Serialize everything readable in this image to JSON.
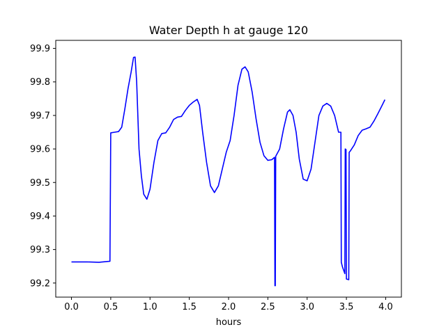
{
  "chart_data": {
    "type": "line",
    "title": "Water Depth h at gauge 120",
    "xlabel": "hours",
    "ylabel": "",
    "xlim": [
      -0.2,
      4.2
    ],
    "ylim": [
      99.158,
      99.924
    ],
    "xticks": [
      0.0,
      0.5,
      1.0,
      1.5,
      2.0,
      2.5,
      3.0,
      3.5,
      4.0
    ],
    "xtick_labels": [
      "0.0",
      "0.5",
      "1.0",
      "1.5",
      "2.0",
      "2.5",
      "3.0",
      "3.5",
      "4.0"
    ],
    "yticks": [
      99.2,
      99.3,
      99.4,
      99.5,
      99.6,
      99.7,
      99.8,
      99.9
    ],
    "ytick_labels": [
      "99.2",
      "99.3",
      "99.4",
      "99.5",
      "99.6",
      "99.7",
      "99.8",
      "99.9"
    ],
    "grid": false,
    "legend": "none",
    "series": [
      {
        "color": "#0000ff",
        "points": [
          [
            0.0,
            99.263
          ],
          [
            0.2,
            99.263
          ],
          [
            0.35,
            99.262
          ],
          [
            0.49,
            99.265
          ],
          [
            0.5,
            99.648
          ],
          [
            0.55,
            99.65
          ],
          [
            0.6,
            99.652
          ],
          [
            0.64,
            99.665
          ],
          [
            0.68,
            99.72
          ],
          [
            0.72,
            99.78
          ],
          [
            0.76,
            99.83
          ],
          [
            0.79,
            99.873
          ],
          [
            0.81,
            99.874
          ],
          [
            0.83,
            99.8
          ],
          [
            0.86,
            99.6
          ],
          [
            0.89,
            99.52
          ],
          [
            0.92,
            99.465
          ],
          [
            0.96,
            99.45
          ],
          [
            1.0,
            99.48
          ],
          [
            1.05,
            99.56
          ],
          [
            1.1,
            99.625
          ],
          [
            1.15,
            99.646
          ],
          [
            1.2,
            99.648
          ],
          [
            1.25,
            99.665
          ],
          [
            1.3,
            99.688
          ],
          [
            1.35,
            99.695
          ],
          [
            1.4,
            99.697
          ],
          [
            1.45,
            99.715
          ],
          [
            1.5,
            99.73
          ],
          [
            1.55,
            99.74
          ],
          [
            1.6,
            99.748
          ],
          [
            1.63,
            99.73
          ],
          [
            1.67,
            99.65
          ],
          [
            1.72,
            99.56
          ],
          [
            1.77,
            99.49
          ],
          [
            1.82,
            99.47
          ],
          [
            1.87,
            99.49
          ],
          [
            1.92,
            99.54
          ],
          [
            1.97,
            99.59
          ],
          [
            2.02,
            99.625
          ],
          [
            2.07,
            99.7
          ],
          [
            2.12,
            99.79
          ],
          [
            2.17,
            99.838
          ],
          [
            2.21,
            99.845
          ],
          [
            2.25,
            99.83
          ],
          [
            2.3,
            99.77
          ],
          [
            2.35,
            99.69
          ],
          [
            2.4,
            99.62
          ],
          [
            2.45,
            99.58
          ],
          [
            2.5,
            99.566
          ],
          [
            2.55,
            99.568
          ],
          [
            2.585,
            99.575
          ],
          [
            2.59,
            99.192
          ],
          [
            2.595,
            99.192
          ],
          [
            2.6,
            99.578
          ],
          [
            2.65,
            99.6
          ],
          [
            2.7,
            99.66
          ],
          [
            2.75,
            99.71
          ],
          [
            2.78,
            99.717
          ],
          [
            2.82,
            99.7
          ],
          [
            2.86,
            99.65
          ],
          [
            2.9,
            99.57
          ],
          [
            2.95,
            99.51
          ],
          [
            3.0,
            99.505
          ],
          [
            3.05,
            99.54
          ],
          [
            3.1,
            99.62
          ],
          [
            3.15,
            99.7
          ],
          [
            3.2,
            99.728
          ],
          [
            3.25,
            99.736
          ],
          [
            3.3,
            99.728
          ],
          [
            3.35,
            99.7
          ],
          [
            3.4,
            99.65
          ],
          [
            3.43,
            99.65
          ],
          [
            3.435,
            99.262
          ],
          [
            3.45,
            99.248
          ],
          [
            3.48,
            99.228
          ],
          [
            3.485,
            99.6
          ],
          [
            3.495,
            99.598
          ],
          [
            3.5,
            99.212
          ],
          [
            3.53,
            99.21
          ],
          [
            3.535,
            99.59
          ],
          [
            3.55,
            99.594
          ],
          [
            3.6,
            99.612
          ],
          [
            3.65,
            99.64
          ],
          [
            3.7,
            99.656
          ],
          [
            3.75,
            99.66
          ],
          [
            3.8,
            99.665
          ],
          [
            3.85,
            99.683
          ],
          [
            3.9,
            99.705
          ],
          [
            3.95,
            99.728
          ],
          [
            3.99,
            99.747
          ]
        ]
      }
    ]
  }
}
